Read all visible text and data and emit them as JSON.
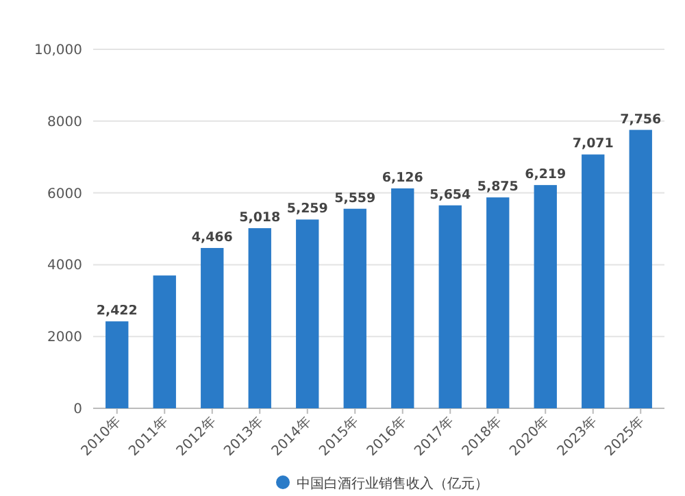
{
  "chart_data": {
    "type": "bar",
    "categories": [
      "2010年",
      "2011年",
      "2012年",
      "2013年",
      "2014年",
      "2015年",
      "2016年",
      "2017年",
      "2018年",
      "2020年",
      "2023年",
      "2025年"
    ],
    "series": [
      {
        "name": "中国白酒行业销售收入（亿元）",
        "color": "#2a7bc8",
        "values": [
          2422,
          3700,
          4466,
          5018,
          5259,
          5559,
          6126,
          5654,
          5875,
          6219,
          7071,
          7756
        ],
        "value_labels": [
          "2,422",
          null,
          "4,466",
          "5,018",
          "5,259",
          "5,559",
          "6,126",
          "5,654",
          "5,875",
          "6,219",
          "7,071",
          "7,756"
        ]
      }
    ],
    "ylim": [
      0,
      10000
    ],
    "yticks": [
      0,
      2000,
      4000,
      6000,
      8000,
      {
        "value": 10000,
        "label": "10,000"
      }
    ],
    "grid": "y",
    "legend": "bottom"
  }
}
